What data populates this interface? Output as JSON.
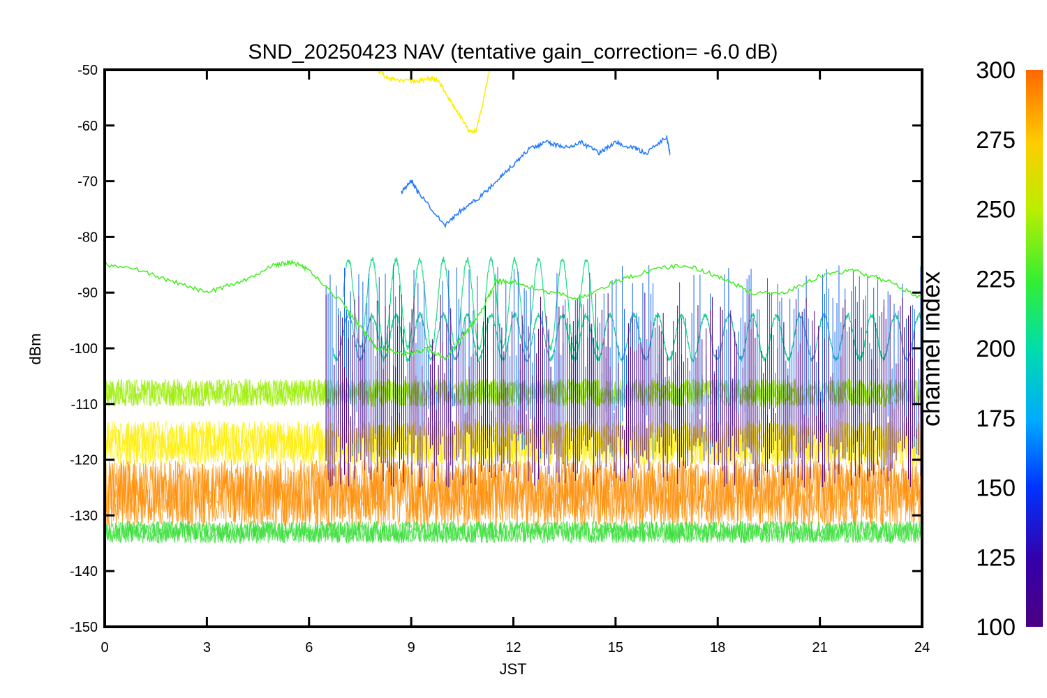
{
  "chart_data": {
    "type": "line",
    "title": "SND_20250423 NAV (tentative gain_correction= -6.0 dB)",
    "xlabel": "JST",
    "ylabel": "dBm",
    "xlim": [
      0,
      24
    ],
    "ylim": [
      -150,
      -50
    ],
    "x_ticks": [
      "0",
      "3",
      "6",
      "9",
      "12",
      "15",
      "18",
      "21",
      "24"
    ],
    "y_ticks": [
      "-50",
      "-60",
      "-70",
      "-80",
      "-90",
      "-100",
      "-110",
      "-120",
      "-130",
      "-140",
      "-150"
    ],
    "grid": false,
    "colorbar": {
      "label": "channel index",
      "range": [
        100,
        300
      ],
      "ticks": [
        "300",
        "275",
        "250",
        "225",
        "200",
        "175",
        "150",
        "125",
        "100"
      ],
      "colormap": "rainbow"
    },
    "series": [
      {
        "channel": 290,
        "color": "#ff8c00",
        "kind": "noise_band",
        "center": -126,
        "spread": 6,
        "note_ranges": []
      },
      {
        "channel": 270,
        "color": "#ffee00",
        "kind": "noise_band",
        "center": -117,
        "spread": 4
      },
      {
        "channel": 255,
        "color": "#99ee00",
        "kind": "noise_band",
        "center": -108,
        "spread": 2.5
      },
      {
        "channel": 240,
        "color": "#33dd33",
        "kind": "noise_band",
        "center": -133,
        "spread": 2
      },
      {
        "channel": 245,
        "color": "#44ee22",
        "kind": "trace",
        "x": [
          0,
          1,
          2,
          3,
          4,
          5,
          5.5,
          6,
          7,
          7.5,
          8,
          9,
          9.5,
          10,
          10.5,
          11,
          11.5,
          12,
          13,
          14,
          15,
          16,
          17,
          18,
          19,
          20,
          21,
          22,
          23,
          24
        ],
        "y": [
          -85,
          -86,
          -88,
          -90,
          -88,
          -85,
          -84.5,
          -86,
          -92,
          -96,
          -100,
          -101,
          -100,
          -102,
          -98,
          -94,
          -88,
          -88,
          -90,
          -91,
          -88,
          -86,
          -85,
          -87,
          -90,
          -90,
          -87,
          -86,
          -88,
          -91
        ]
      },
      {
        "channel": 215,
        "color": "#22dd88",
        "kind": "oscillating",
        "x_range": [
          7,
          14.5
        ],
        "center": -92,
        "amplitude": 8
      },
      {
        "channel": 210,
        "color": "#22cc99",
        "kind": "oscillating",
        "x_range": [
          6.7,
          24
        ],
        "center": -98,
        "amplitude": 4
      },
      {
        "channel": 150,
        "color": "#1f77ff",
        "kind": "trace",
        "x": [
          8.7,
          9,
          9.2,
          10,
          10.5,
          11,
          11.5,
          12,
          12.5,
          13,
          13.5,
          14,
          14.5,
          15,
          15.5,
          15.9,
          16.5,
          16.6
        ],
        "y": [
          -72,
          -70,
          -72,
          -78,
          -75,
          -73,
          -70,
          -67,
          -64,
          -63,
          -64,
          -63,
          -65,
          -63,
          -64,
          -65,
          -62,
          -65
        ]
      },
      {
        "channel": 270,
        "color": "#ffee00",
        "kind": "trace",
        "x": [
          8.0,
          8.3,
          8.7,
          9.2,
          9.6,
          9.8,
          10.1,
          10.4,
          10.7,
          10.9,
          11.1,
          11.3
        ],
        "y": [
          -50,
          -51.5,
          -52,
          -52,
          -51.5,
          -52,
          -55,
          -58,
          -61,
          -61,
          -56,
          -50
        ]
      },
      {
        "channel": 165,
        "color": "#1166ee",
        "kind": "spikes",
        "x_range": [
          6.5,
          24
        ],
        "base": -110
      },
      {
        "channel": 110,
        "color": "#4b0082",
        "kind": "spikes",
        "x_range": [
          6.5,
          24
        ],
        "base": -115
      }
    ]
  }
}
